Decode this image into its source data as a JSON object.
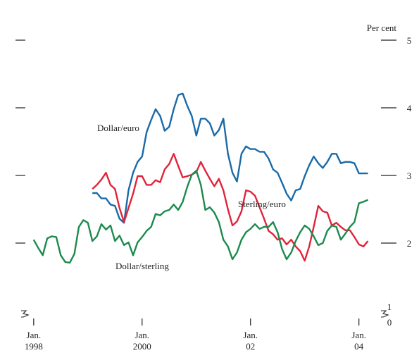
{
  "chart_data": {
    "type": "line",
    "y_label": "Per cent",
    "y_break_label": "0",
    "x": [
      "1998-01",
      "1998-02",
      "1998-03",
      "1998-04",
      "1998-05",
      "1998-06",
      "1998-07",
      "1998-08",
      "1998-09",
      "1998-10",
      "1998-11",
      "1998-12",
      "1999-01",
      "1999-02",
      "1999-03",
      "1999-04",
      "1999-05",
      "1999-06",
      "1999-07",
      "1999-08",
      "1999-09",
      "1999-10",
      "1999-11",
      "1999-12",
      "2000-01",
      "2000-02",
      "2000-03",
      "2000-04",
      "2000-05",
      "2000-06",
      "2000-07",
      "2000-08",
      "2000-09",
      "2000-10",
      "2000-11",
      "2000-12",
      "2001-01",
      "2001-02",
      "2001-03",
      "2001-04",
      "2001-05",
      "2001-06",
      "2001-07",
      "2001-08",
      "2001-09",
      "2001-10",
      "2001-11",
      "2001-12",
      "2002-01",
      "2002-02",
      "2002-03",
      "2002-04",
      "2002-05",
      "2002-06",
      "2002-07",
      "2002-08",
      "2002-09",
      "2002-10",
      "2002-11",
      "2002-12",
      "2003-01",
      "2003-02",
      "2003-03",
      "2003-04",
      "2003-05",
      "2003-06",
      "2003-07",
      "2003-08",
      "2003-09",
      "2003-10",
      "2003-11",
      "2003-12",
      "2004-01",
      "2004-02",
      "2004-03"
    ],
    "series": [
      {
        "name": "Dollar/euro",
        "color": "#1a6aa8",
        "values": [
          null,
          null,
          null,
          null,
          null,
          null,
          null,
          null,
          null,
          null,
          null,
          null,
          null,
          2.74,
          2.74,
          2.66,
          2.66,
          2.57,
          2.55,
          2.36,
          2.3,
          2.78,
          3.04,
          3.2,
          3.28,
          3.64,
          3.82,
          3.98,
          3.88,
          3.66,
          3.72,
          3.98,
          4.19,
          4.21,
          4.03,
          3.88,
          3.59,
          3.84,
          3.84,
          3.77,
          3.59,
          3.67,
          3.84,
          3.32,
          3.04,
          2.91,
          3.32,
          3.43,
          3.39,
          3.39,
          3.35,
          3.35,
          3.25,
          3.09,
          3.04,
          2.89,
          2.73,
          2.63,
          2.78,
          2.8,
          2.99,
          3.15,
          3.28,
          3.18,
          3.11,
          3.2,
          3.32,
          3.32,
          3.18,
          3.2,
          3.2,
          3.18,
          3.03,
          3.03,
          3.03
        ]
      },
      {
        "name": "Sterling/euro",
        "color": "#e0243a",
        "values": [
          null,
          null,
          null,
          null,
          null,
          null,
          null,
          null,
          null,
          null,
          null,
          null,
          null,
          2.8,
          2.86,
          2.94,
          3.04,
          2.86,
          2.8,
          2.52,
          2.31,
          2.52,
          2.73,
          2.99,
          2.99,
          2.86,
          2.86,
          2.93,
          2.9,
          3.09,
          3.17,
          3.32,
          3.14,
          2.97,
          2.99,
          3.01,
          3.05,
          3.2,
          3.07,
          2.95,
          2.84,
          2.95,
          2.78,
          2.5,
          2.26,
          2.32,
          2.47,
          2.78,
          2.76,
          2.7,
          2.53,
          2.36,
          2.18,
          2.13,
          2.05,
          2.07,
          1.98,
          2.05,
          1.95,
          1.88,
          1.74,
          1.95,
          2.24,
          2.55,
          2.47,
          2.45,
          2.26,
          2.3,
          2.24,
          2.19,
          2.19,
          2.09,
          1.98,
          1.95,
          2.03
        ]
      },
      {
        "name": "Dollar/sterling",
        "color": "#1c8a4e",
        "values": [
          2.05,
          1.93,
          1.82,
          2.07,
          2.1,
          2.09,
          1.82,
          1.72,
          1.71,
          1.84,
          2.24,
          2.34,
          2.3,
          2.03,
          2.1,
          2.28,
          2.2,
          2.26,
          2.03,
          2.11,
          1.97,
          2.01,
          1.82,
          2.01,
          2.09,
          2.18,
          2.24,
          2.43,
          2.41,
          2.47,
          2.49,
          2.57,
          2.49,
          2.61,
          2.83,
          3.01,
          3.07,
          2.86,
          2.49,
          2.53,
          2.45,
          2.31,
          2.05,
          1.95,
          1.76,
          1.86,
          2.05,
          2.16,
          2.21,
          2.28,
          2.21,
          2.24,
          2.24,
          2.31,
          2.16,
          1.91,
          1.76,
          1.86,
          2.03,
          2.16,
          2.26,
          2.21,
          2.1,
          1.97,
          2.0,
          2.18,
          2.26,
          2.24,
          2.05,
          2.14,
          2.24,
          2.31,
          2.59,
          2.61,
          2.64
        ]
      }
    ],
    "xlim": [
      "1997-11",
      "2004-09"
    ],
    "xticks": [
      {
        "value": "1998-01",
        "label": "Jan. 1998"
      },
      {
        "value": "2000-01",
        "label": "Jan. 2000"
      },
      {
        "value": "2002-01",
        "label": "Jan. 02"
      },
      {
        "value": "2004-01",
        "label": "Jan. 04"
      }
    ],
    "ylim": [
      1,
      5
    ],
    "yticks": [
      1,
      2,
      3,
      4,
      5
    ]
  }
}
